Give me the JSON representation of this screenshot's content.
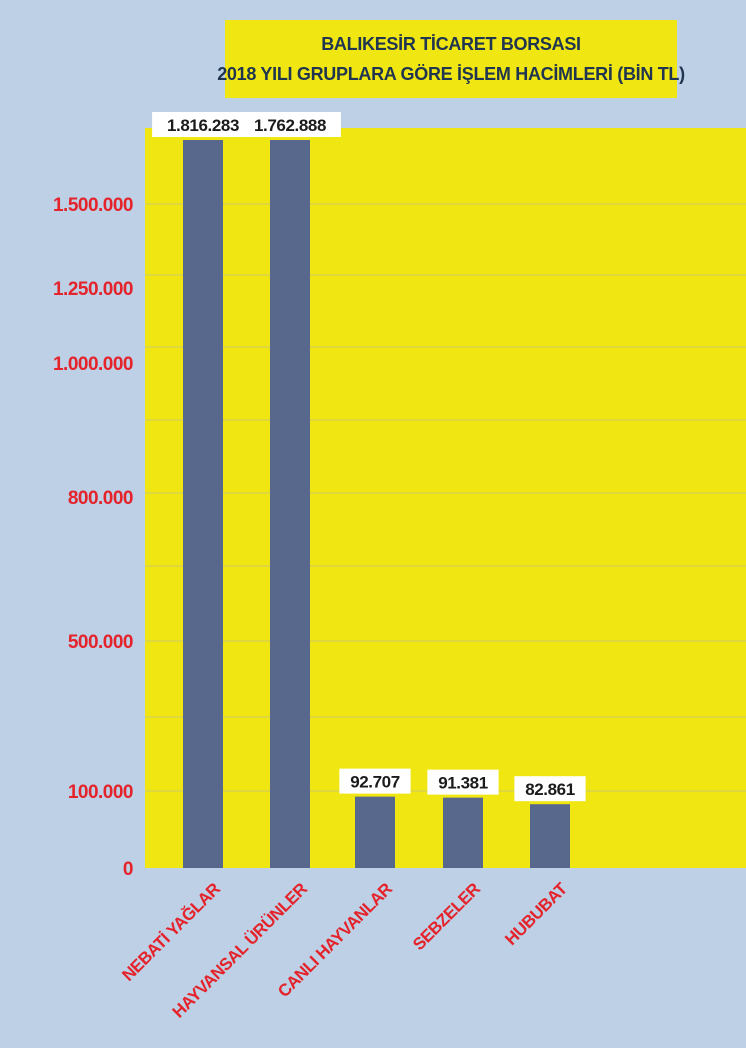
{
  "chart_data": {
    "type": "bar",
    "title": "BALIKESİR TİCARET BORSASI",
    "subtitle": "2018 YILI GRUPLARA GÖRE İŞLEM HACİMLERİ (BİN TL)",
    "categories": [
      "NEBATİ YAĞLAR",
      "HAYVANSAL ÜRÜNLER",
      "CANLI HAYVANLAR",
      "SEBZELER",
      "HUBUBAT"
    ],
    "values": [
      1816283,
      1762888,
      92707,
      91381,
      82861
    ],
    "value_labels": [
      "1.816.283",
      "1.762.888",
      "92.707",
      "91.381",
      "82.861"
    ],
    "y_ticks": [
      {
        "value": 0,
        "label": "0"
      },
      {
        "value": 100000,
        "label": "100.000"
      },
      {
        "value": 500000,
        "label": "500.000"
      },
      {
        "value": 800000,
        "label": "800.000"
      },
      {
        "value": 1000000,
        "label": "1.000.000"
      },
      {
        "value": 1250000,
        "label": "1.250.000"
      },
      {
        "value": 1500000,
        "label": "1.500.000"
      }
    ],
    "grid": true,
    "colors": {
      "background": "#bdd0e6",
      "plot": "#f0e611",
      "bar": "#58678c",
      "tick_label": "#e4232b",
      "grid": "#d4ce5a",
      "title_text": "#1f3550"
    }
  }
}
